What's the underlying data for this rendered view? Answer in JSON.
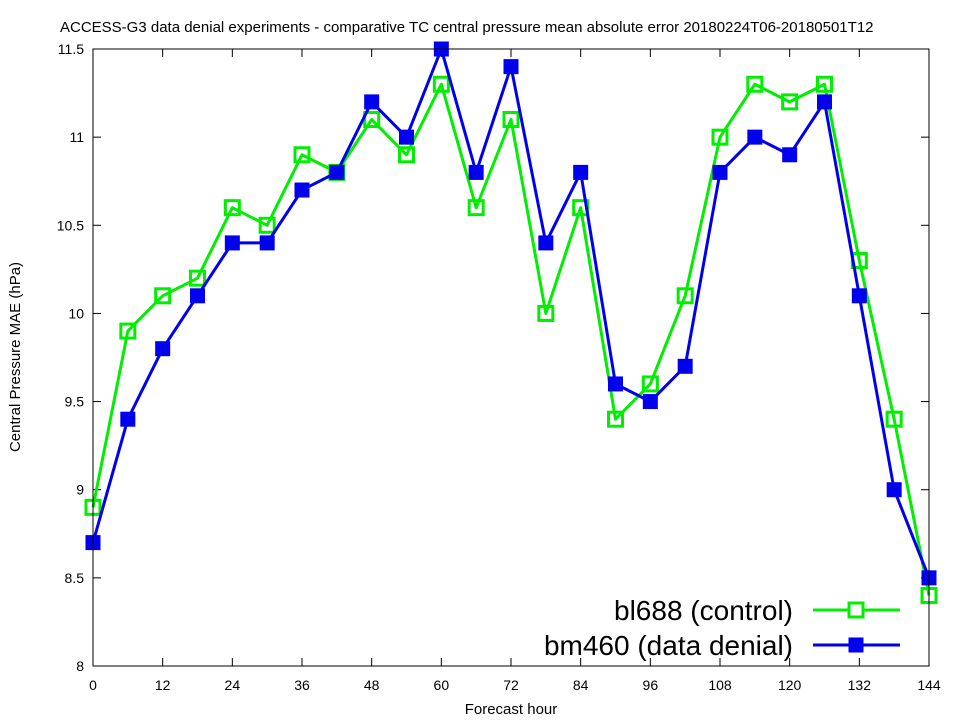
{
  "chart_data": {
    "type": "line",
    "title": "ACCESS-G3 data denial experiments - comparative TC central pressure mean absolute error 20180224T06-20180501T12",
    "xlabel": "Forecast hour",
    "ylabel": "Central Pressure MAE (hPa)",
    "xlim": [
      0,
      144
    ],
    "ylim": [
      8,
      11.5
    ],
    "xticks": [
      0,
      12,
      24,
      36,
      48,
      60,
      72,
      84,
      96,
      108,
      120,
      132,
      144
    ],
    "yticks": [
      8,
      8.5,
      9,
      9.5,
      10,
      10.5,
      11,
      11.5
    ],
    "xtick_labels": [
      "0",
      "12",
      "24",
      "36",
      "48",
      "60",
      "72",
      "84",
      "96",
      "108",
      "120",
      "132",
      "144"
    ],
    "ytick_labels": [
      "8",
      "8.5",
      "9",
      "9.5",
      "10",
      "10.5",
      "11",
      "11.5"
    ],
    "grid": false,
    "legend_position": "bottom-right",
    "x": [
      0,
      6,
      12,
      18,
      24,
      30,
      36,
      42,
      48,
      54,
      60,
      66,
      72,
      78,
      84,
      90,
      96,
      102,
      108,
      114,
      120,
      126,
      132,
      138,
      144
    ],
    "series": [
      {
        "name": "bl688 (control)",
        "color": "#00ee00",
        "marker": "open-square",
        "values": [
          8.9,
          9.9,
          10.1,
          10.2,
          10.6,
          10.5,
          10.9,
          10.8,
          11.1,
          10.9,
          11.3,
          10.6,
          11.1,
          10.0,
          10.6,
          9.4,
          9.6,
          10.1,
          11.0,
          11.3,
          11.2,
          11.3,
          10.3,
          9.4,
          8.4
        ]
      },
      {
        "name": "bm460 (data denial)",
        "color": "#0000ee",
        "marker": "filled-square",
        "values": [
          8.7,
          9.4,
          9.8,
          10.1,
          10.4,
          10.4,
          10.7,
          10.8,
          11.2,
          11.0,
          11.5,
          10.8,
          11.4,
          10.4,
          10.8,
          9.6,
          9.5,
          9.7,
          10.8,
          11.0,
          10.9,
          11.2,
          10.1,
          9.0,
          8.5
        ]
      }
    ]
  }
}
